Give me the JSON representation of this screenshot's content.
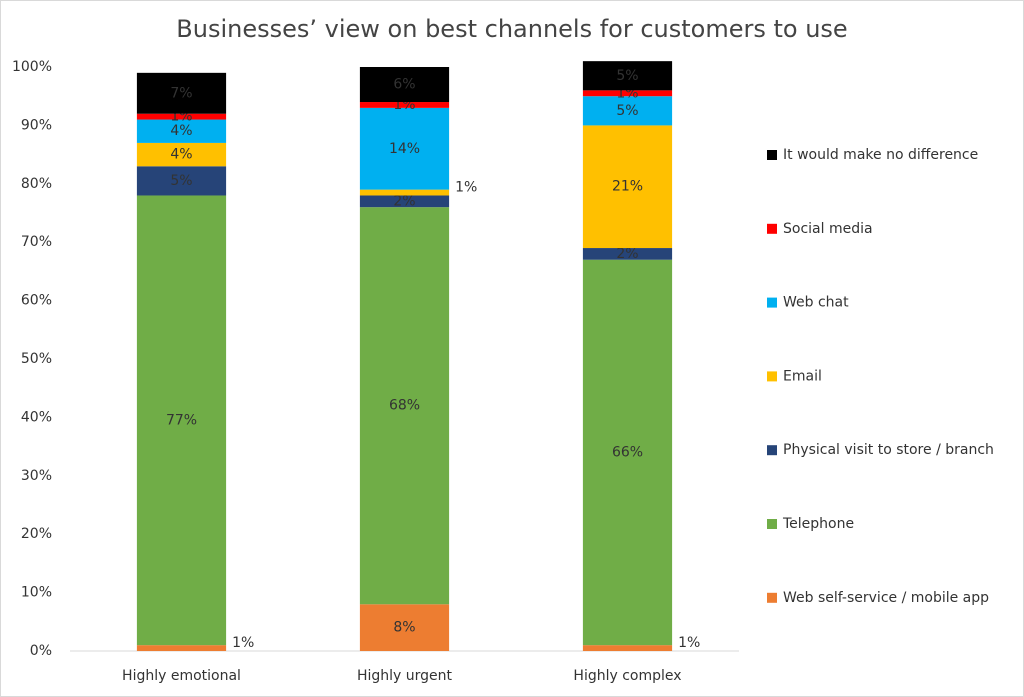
{
  "chart_data": {
    "type": "stacked-bar",
    "title": "Businesses’ view on best channels for customers to use",
    "categories": [
      "Highly emotional",
      "Highly urgent",
      "Highly complex"
    ],
    "series": [
      {
        "name": "Web self-service / mobile app",
        "color": "#ed7d31",
        "values": [
          1,
          8,
          1
        ],
        "value_labels": [
          "1%",
          "8%",
          "1%"
        ]
      },
      {
        "name": "Telephone",
        "color": "#70ad47",
        "values": [
          77,
          68,
          66
        ],
        "value_labels": [
          "77%",
          "68%",
          "66%"
        ]
      },
      {
        "name": "Physical visit to store / branch",
        "color": "#264478",
        "values": [
          5,
          2,
          2
        ],
        "value_labels": [
          "5%",
          "2%",
          "2%"
        ]
      },
      {
        "name": "Email",
        "color": "#ffc000",
        "values": [
          4,
          1,
          21
        ],
        "value_labels": [
          "4%",
          "1%",
          "21%"
        ]
      },
      {
        "name": "Web chat",
        "color": "#00b0f0",
        "values": [
          4,
          14,
          5
        ],
        "value_labels": [
          "4%",
          "14%",
          "5%"
        ]
      },
      {
        "name": "Social media",
        "color": "#ff0000",
        "values": [
          1,
          1,
          1
        ],
        "value_labels": [
          "1%",
          "1%",
          "1%"
        ]
      },
      {
        "name": "It would make no difference",
        "color": "#000000",
        "values": [
          7,
          6,
          5
        ],
        "value_labels": [
          "7%",
          "6%",
          "5%"
        ]
      }
    ],
    "ylim": [
      0,
      100
    ],
    "yticks": [
      {
        "value": 0,
        "label": "0%"
      },
      {
        "value": 10,
        "label": "10%"
      },
      {
        "value": 20,
        "label": "20%"
      },
      {
        "value": 30,
        "label": "30%"
      },
      {
        "value": 40,
        "label": "40%"
      },
      {
        "value": 50,
        "label": "50%"
      },
      {
        "value": 60,
        "label": "60%"
      },
      {
        "value": 70,
        "label": "70%"
      },
      {
        "value": 80,
        "label": "80%"
      },
      {
        "value": 90,
        "label": "90%"
      },
      {
        "value": 100,
        "label": "100%"
      }
    ],
    "grid": false,
    "legend": "right"
  }
}
